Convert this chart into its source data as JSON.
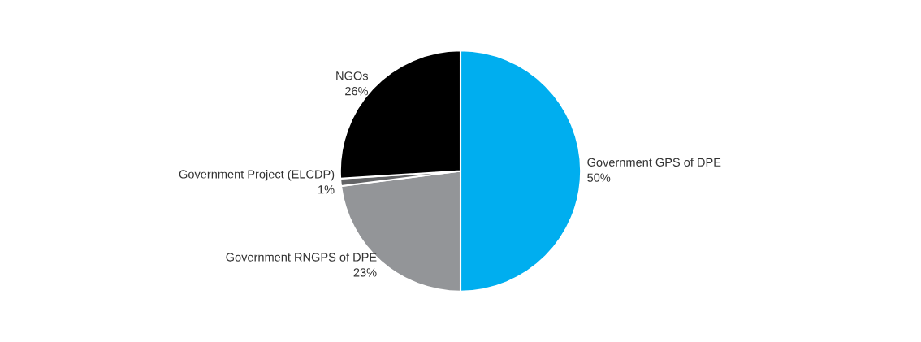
{
  "chart_data": {
    "type": "pie",
    "categories": [
      "Government GPS of DPE",
      "Government RNGPS of DPE",
      "Government Project (ELCDP)",
      "NGOs"
    ],
    "values": [
      50,
      23,
      1,
      26
    ],
    "value_labels": [
      "50%",
      "23%",
      "1%",
      "26%"
    ],
    "colors": [
      "#00aeef",
      "#939598",
      "#636466",
      "#000000"
    ]
  }
}
